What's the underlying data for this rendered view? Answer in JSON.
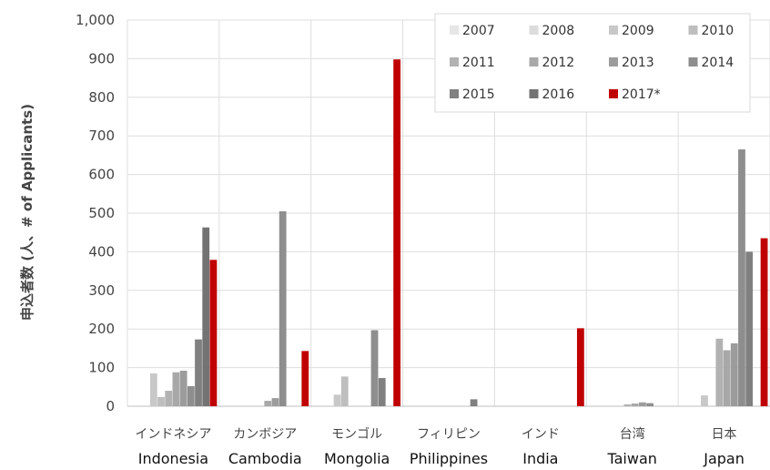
{
  "chart_data": {
    "type": "bar",
    "ylabel": "申込者数 (人、# of Applicants)",
    "ylim": [
      0,
      1000
    ],
    "yticks": [
      0,
      100,
      200,
      300,
      400,
      500,
      600,
      700,
      800,
      900,
      1000
    ],
    "ytick_labels": [
      "0",
      "100",
      "200",
      "300",
      "400",
      "500",
      "600",
      "700",
      "800",
      "900",
      "1,000"
    ],
    "grid": "horizontal and vertical",
    "legend_position": "top-right",
    "categories": [
      {
        "jp": "インドネシア",
        "en": "Indonesia"
      },
      {
        "jp": "カンボジア",
        "en": "Cambodia"
      },
      {
        "jp": "モンゴル",
        "en": "Mongolia"
      },
      {
        "jp": "フィリピン",
        "en": "Philippines"
      },
      {
        "jp": "インド",
        "en": "India"
      },
      {
        "jp": "台湾",
        "en": "Taiwan"
      },
      {
        "jp": "日本",
        "en": "Japan"
      }
    ],
    "series": [
      {
        "name": "2007",
        "color": "#e6e6e6",
        "values": [
          0,
          0,
          0,
          0,
          0,
          0,
          0
        ]
      },
      {
        "name": "2008",
        "color": "#dcdcdc",
        "values": [
          0,
          0,
          0,
          0,
          0,
          0,
          0
        ]
      },
      {
        "name": "2009",
        "color": "#c8c8c8",
        "values": [
          85,
          0,
          30,
          0,
          0,
          0,
          28
        ]
      },
      {
        "name": "2010",
        "color": "#bebebe",
        "values": [
          24,
          0,
          77,
          0,
          0,
          0,
          0
        ]
      },
      {
        "name": "2011",
        "color": "#b2b2b2",
        "values": [
          40,
          0,
          0,
          0,
          0,
          5,
          175
        ]
      },
      {
        "name": "2012",
        "color": "#a8a8a8",
        "values": [
          88,
          14,
          0,
          0,
          0,
          7,
          145
        ]
      },
      {
        "name": "2013",
        "color": "#9c9c9c",
        "values": [
          92,
          21,
          0,
          0,
          0,
          10,
          163
        ]
      },
      {
        "name": "2014",
        "color": "#8e8e8e",
        "values": [
          52,
          505,
          197,
          0,
          0,
          8,
          665
        ]
      },
      {
        "name": "2015",
        "color": "#808080",
        "values": [
          173,
          0,
          73,
          18,
          0,
          0,
          400
        ]
      },
      {
        "name": "2016",
        "color": "#737373",
        "values": [
          463,
          0,
          0,
          0,
          0,
          0,
          0
        ]
      },
      {
        "name": "2017*",
        "color": "#c00000",
        "values": [
          379,
          143,
          898,
          0,
          202,
          0,
          435
        ]
      }
    ]
  }
}
